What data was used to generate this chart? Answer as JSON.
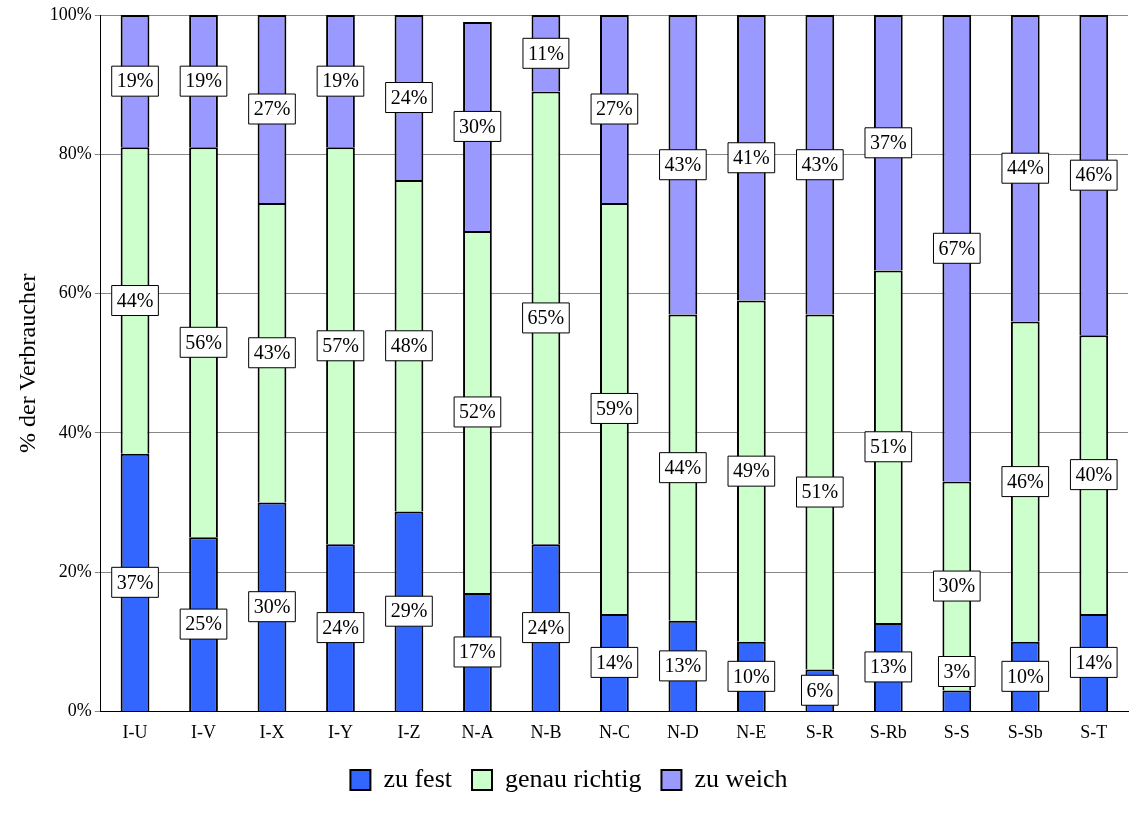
{
  "chart_data": {
    "type": "bar",
    "stacked": true,
    "ylabel": "% der Verbraucher",
    "categories": [
      "I-U",
      "I-V",
      "I-X",
      "I-Y",
      "I-Z",
      "N-A",
      "N-B",
      "N-C",
      "N-D",
      "N-E",
      "S-R",
      "S-Rb",
      "S-S",
      "S-Sb",
      "S-T"
    ],
    "series": [
      {
        "name": "zu fest",
        "color": "#3366ff",
        "values": [
          37,
          25,
          30,
          24,
          28.7,
          17,
          24,
          14,
          13,
          10,
          6,
          12.7,
          3,
          10,
          14
        ],
        "value_labels": [
          "37%",
          "25%",
          "30%",
          "24%",
          "29%",
          "17%",
          "24%",
          "14%",
          "13%",
          "10%",
          "6%",
          "13%",
          "3%",
          "10%",
          "14%"
        ]
      },
      {
        "name": "genau richtig",
        "color": "#ccffcc",
        "values": [
          44,
          56,
          43,
          57,
          47.6,
          52,
          65,
          59,
          44,
          49,
          51,
          50.6,
          30,
          46,
          40
        ],
        "value_labels": [
          "44%",
          "56%",
          "43%",
          "57%",
          "48%",
          "52%",
          "65%",
          "59%",
          "44%",
          "49%",
          "51%",
          "51%",
          "30%",
          "46%",
          "40%"
        ]
      },
      {
        "name": "zu weich",
        "color": "#9999ff",
        "values": [
          19,
          19,
          27,
          19,
          23.7,
          30,
          11,
          27,
          43,
          41,
          43,
          36.7,
          67,
          44,
          46
        ],
        "value_labels": [
          "19%",
          "19%",
          "27%",
          "19%",
          "24%",
          "30%",
          "11%",
          "27%",
          "43%",
          "41%",
          "43%",
          "37%",
          "67%",
          "44%",
          "46%"
        ]
      }
    ],
    "ylim": [
      0,
      100
    ],
    "yticks": [
      {
        "value": 0,
        "label": "0%"
      },
      {
        "value": 20,
        "label": "20%"
      },
      {
        "value": 40,
        "label": "40%"
      },
      {
        "value": 60,
        "label": "60%"
      },
      {
        "value": 80,
        "label": "80%"
      },
      {
        "value": 100,
        "label": "100%"
      }
    ],
    "grid": "y",
    "legend": "bottom"
  }
}
